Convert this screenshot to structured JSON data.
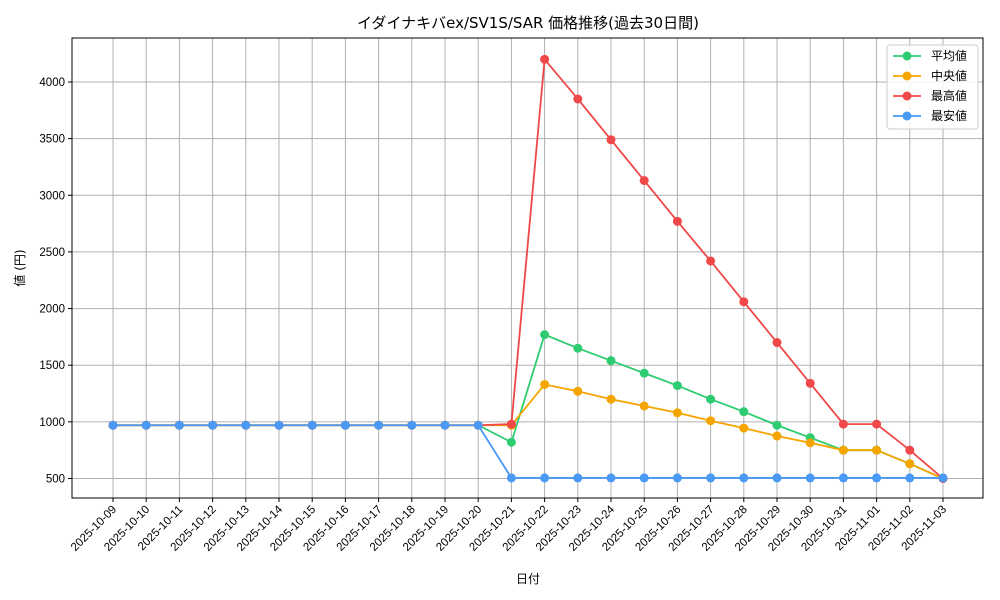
{
  "chart_data": {
    "type": "line",
    "title": "イダイナキバex/SV1S/SAR 価格推移(過去30日間)",
    "xlabel": "日付",
    "ylabel": "値 (円)",
    "ylim": [
      330,
      4380
    ],
    "yticks": [
      500,
      1000,
      1500,
      2000,
      2500,
      3000,
      3500,
      4000
    ],
    "grid": true,
    "legend_position": "upper right",
    "categories": [
      "2025-10-09",
      "2025-10-10",
      "2025-10-11",
      "2025-10-12",
      "2025-10-13",
      "2025-10-14",
      "2025-10-15",
      "2025-10-16",
      "2025-10-17",
      "2025-10-18",
      "2025-10-19",
      "2025-10-20",
      "2025-10-21",
      "2025-10-22",
      "2025-10-23",
      "2025-10-24",
      "2025-10-25",
      "2025-10-26",
      "2025-10-27",
      "2025-10-28",
      "2025-10-29",
      "2025-10-30",
      "2025-10-31",
      "2025-11-01",
      "2025-11-02",
      "2025-11-03"
    ],
    "series": [
      {
        "name": "平均値",
        "color": "#2ecc71",
        "values": [
          970,
          970,
          970,
          970,
          970,
          970,
          970,
          970,
          970,
          970,
          970,
          970,
          820,
          1770,
          1650,
          1540,
          1430,
          1320,
          1200,
          1090,
          970,
          860,
          750,
          750,
          630,
          500
        ]
      },
      {
        "name": "中央値",
        "color": "#f5a500",
        "values": [
          970,
          970,
          970,
          970,
          970,
          970,
          970,
          970,
          970,
          970,
          970,
          970,
          970,
          1330,
          1270,
          1200,
          1140,
          1080,
          1010,
          945,
          875,
          815,
          750,
          750,
          630,
          500
        ]
      },
      {
        "name": "最高値",
        "color": "#f04848",
        "values": [
          970,
          970,
          970,
          970,
          970,
          970,
          970,
          970,
          970,
          970,
          970,
          970,
          980,
          4200,
          3850,
          3490,
          3130,
          2770,
          2420,
          2060,
          1700,
          1340,
          980,
          980,
          750,
          500
        ]
      },
      {
        "name": "最安値",
        "color": "#4a9af5",
        "values": [
          970,
          970,
          970,
          970,
          970,
          970,
          970,
          970,
          970,
          970,
          970,
          970,
          505,
          505,
          505,
          505,
          505,
          505,
          505,
          505,
          505,
          505,
          505,
          505,
          505,
          505
        ]
      }
    ]
  }
}
